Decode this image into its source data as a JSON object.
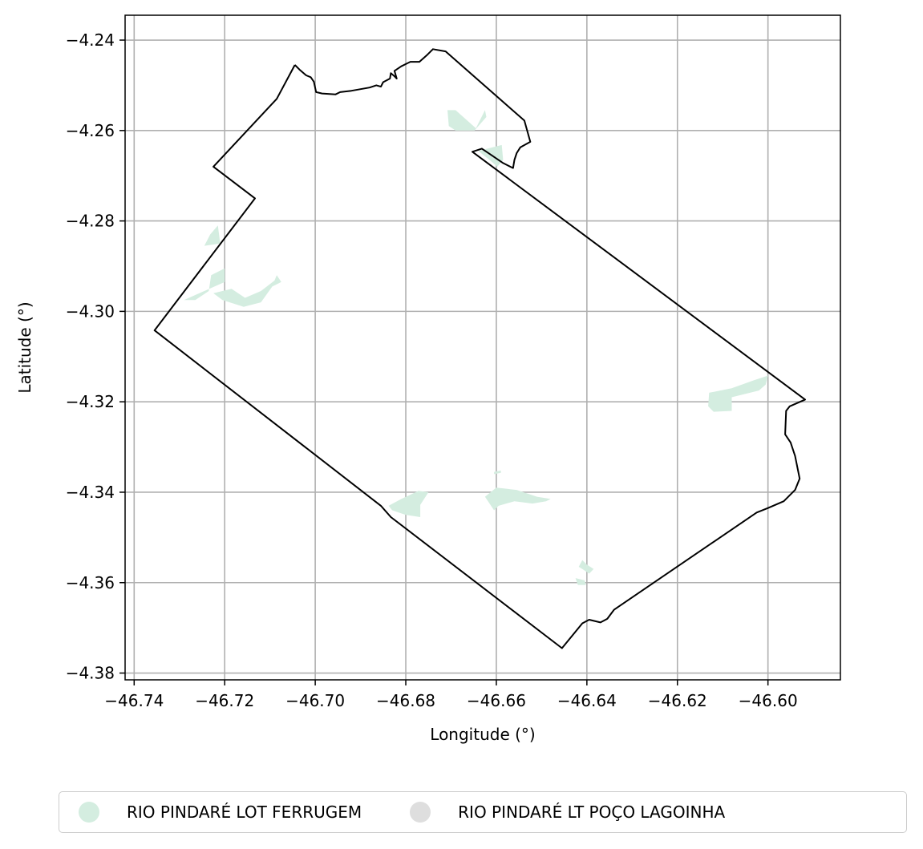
{
  "chart_data": {
    "type": "map",
    "xlabel": "Longitude (°)",
    "ylabel": "Latitude (°)",
    "xlim": [
      -46.742,
      -46.584
    ],
    "ylim": [
      -4.3815,
      -4.2345
    ],
    "x_ticks": [
      -46.74,
      -46.72,
      -46.7,
      -46.68,
      -46.66,
      -46.64,
      -46.62,
      -46.6
    ],
    "x_tick_labels": [
      "−46.74",
      "−46.72",
      "−46.70",
      "−46.68",
      "−46.66",
      "−46.64",
      "−46.62",
      "−46.60"
    ],
    "y_ticks": [
      -4.24,
      -4.26,
      -4.28,
      -4.3,
      -4.32,
      -4.34,
      -4.36,
      -4.38
    ],
    "y_tick_labels": [
      "−4.24",
      "−4.26",
      "−4.28",
      "−4.30",
      "−4.32",
      "−4.34",
      "−4.36",
      "−4.38"
    ],
    "grid": true,
    "legend_placement": "bottom-center",
    "boundary": [
      [
        -46.7045,
        -4.2455
      ],
      [
        -46.7035,
        -4.2465
      ],
      [
        -46.702,
        -4.2478
      ],
      [
        -46.701,
        -4.2482
      ],
      [
        -46.7003,
        -4.2492
      ],
      [
        -46.6998,
        -4.2515
      ],
      [
        -46.6985,
        -4.2518
      ],
      [
        -46.6955,
        -4.252
      ],
      [
        -46.6945,
        -4.2515
      ],
      [
        -46.692,
        -4.2512
      ],
      [
        -46.688,
        -4.2505
      ],
      [
        -46.6865,
        -4.25
      ],
      [
        -46.6855,
        -4.2503
      ],
      [
        -46.685,
        -4.2493
      ],
      [
        -46.6835,
        -4.2485
      ],
      [
        -46.6833,
        -4.2473
      ],
      [
        -46.6825,
        -4.248
      ],
      [
        -46.682,
        -4.2485
      ],
      [
        -46.6825,
        -4.2468
      ],
      [
        -46.681,
        -4.2458
      ],
      [
        -46.679,
        -4.2448
      ],
      [
        -46.677,
        -4.2448
      ],
      [
        -46.6752,
        -4.2432
      ],
      [
        -46.674,
        -4.242
      ],
      [
        -46.6712,
        -4.2425
      ],
      [
        -46.6538,
        -4.2578
      ],
      [
        -46.6525,
        -4.2625
      ],
      [
        -46.6547,
        -4.2637
      ],
      [
        -46.6555,
        -4.265
      ],
      [
        -46.656,
        -4.2665
      ],
      [
        -46.6563,
        -4.2683
      ],
      [
        -46.6585,
        -4.2672
      ],
      [
        -46.661,
        -4.2655
      ],
      [
        -46.6632,
        -4.264
      ],
      [
        -46.6653,
        -4.2647
      ],
      [
        -46.5918,
        -4.3195
      ],
      [
        -46.5952,
        -4.321
      ],
      [
        -46.596,
        -4.322
      ],
      [
        -46.5962,
        -4.3272
      ],
      [
        -46.595,
        -4.329
      ],
      [
        -46.594,
        -4.332
      ],
      [
        -46.593,
        -4.337
      ],
      [
        -46.594,
        -4.3395
      ],
      [
        -46.5965,
        -4.342
      ],
      [
        -46.6,
        -4.3435
      ],
      [
        -46.6025,
        -4.3445
      ],
      [
        -46.634,
        -4.366
      ],
      [
        -46.6355,
        -4.368
      ],
      [
        -46.637,
        -4.3688
      ],
      [
        -46.6395,
        -4.3682
      ],
      [
        -46.641,
        -4.369
      ],
      [
        -46.6455,
        -4.3745
      ],
      [
        -46.6833,
        -4.3455
      ],
      [
        -46.6855,
        -4.343
      ],
      [
        -46.7355,
        -4.3042
      ],
      [
        -46.7133,
        -4.275
      ],
      [
        -46.7225,
        -4.268
      ],
      [
        -46.7085,
        -4.253
      ],
      [
        -46.7045,
        -4.2455
      ]
    ],
    "series": [
      {
        "name": "RIO PINDARÉ LOT FERRUGEM",
        "color": "#d4ede0",
        "patches": [
          [
            [
              -46.6625,
              -4.2555
            ],
            [
              -46.6645,
              -4.2595
            ],
            [
              -46.669,
              -4.2555
            ],
            [
              -46.6708,
              -4.2555
            ],
            [
              -46.6705,
              -4.259
            ],
            [
              -46.669,
              -4.26
            ],
            [
              -46.6648,
              -4.26
            ],
            [
              -46.6622,
              -4.257
            ]
          ],
          [
            [
              -46.664,
              -4.2645
            ],
            [
              -46.6588,
              -4.2632
            ],
            [
              -46.6585,
              -4.2665
            ],
            [
              -46.6598,
              -4.268
            ],
            [
              -46.6615,
              -4.2665
            ]
          ],
          [
            [
              -46.7215,
              -4.281
            ],
            [
              -46.721,
              -4.285
            ],
            [
              -46.7245,
              -4.2855
            ],
            [
              -46.7232,
              -4.283
            ]
          ],
          [
            [
              -46.72,
              -4.2905
            ],
            [
              -46.72,
              -4.2935
            ],
            [
              -46.729,
              -4.2975
            ],
            [
              -46.7265,
              -4.2975
            ],
            [
              -46.7235,
              -4.2955
            ],
            [
              -46.723,
              -4.292
            ]
          ],
          [
            [
              -46.7225,
              -4.296
            ],
            [
              -46.7205,
              -4.2975
            ],
            [
              -46.7158,
              -4.299
            ],
            [
              -46.712,
              -4.298
            ],
            [
              -46.7095,
              -4.2945
            ],
            [
              -46.7075,
              -4.2935
            ],
            [
              -46.7085,
              -4.292
            ],
            [
              -46.709,
              -4.2932
            ],
            [
              -46.712,
              -4.2955
            ],
            [
              -46.7155,
              -4.297
            ],
            [
              -46.7185,
              -4.295
            ]
          ],
          [
            [
              -46.613,
              -4.318
            ],
            [
              -46.608,
              -4.317
            ],
            [
              -46.603,
              -4.3152
            ],
            [
              -46.6,
              -4.3142
            ],
            [
              -46.6005,
              -4.3162
            ],
            [
              -46.602,
              -4.3175
            ],
            [
              -46.608,
              -4.319
            ],
            [
              -46.608,
              -4.322
            ],
            [
              -46.612,
              -4.3222
            ],
            [
              -46.6132,
              -4.321
            ]
          ],
          [
            [
              -46.683,
              -4.344
            ],
            [
              -46.68,
              -4.345
            ],
            [
              -46.6768,
              -4.3455
            ],
            [
              -46.6768,
              -4.3428
            ],
            [
              -46.675,
              -4.34
            ],
            [
              -46.6772,
              -4.3397
            ],
            [
              -46.681,
              -4.3415
            ],
            [
              -46.6838,
              -4.343
            ]
          ],
          [
            [
              -46.6605,
              -4.344
            ],
            [
              -46.6625,
              -4.341
            ],
            [
              -46.66,
              -4.339
            ],
            [
              -46.6555,
              -4.3395
            ],
            [
              -46.651,
              -4.341
            ],
            [
              -46.648,
              -4.3415
            ],
            [
              -46.649,
              -4.342
            ],
            [
              -46.652,
              -4.3425
            ],
            [
              -46.656,
              -4.342
            ],
            [
              -46.6595,
              -4.343
            ]
          ],
          [
            [
              -46.6605,
              -4.336
            ],
            [
              -46.6605,
              -4.3355
            ],
            [
              -46.659,
              -4.3352
            ],
            [
              -46.659,
              -4.3357
            ]
          ],
          [
            [
              -46.641,
              -4.355
            ],
            [
              -46.64,
              -4.356
            ],
            [
              -46.6385,
              -4.357
            ],
            [
              -46.6395,
              -4.358
            ],
            [
              -46.641,
              -4.357
            ],
            [
              -46.6418,
              -4.3565
            ]
          ],
          [
            [
              -46.6425,
              -4.359
            ],
            [
              -46.6405,
              -4.3595
            ],
            [
              -46.6402,
              -4.3605
            ],
            [
              -46.642,
              -4.3605
            ]
          ]
        ]
      },
      {
        "name": "RIO PINDARÉ LT POÇO LAGOINHA",
        "color": "#dedede",
        "patches": []
      }
    ]
  }
}
